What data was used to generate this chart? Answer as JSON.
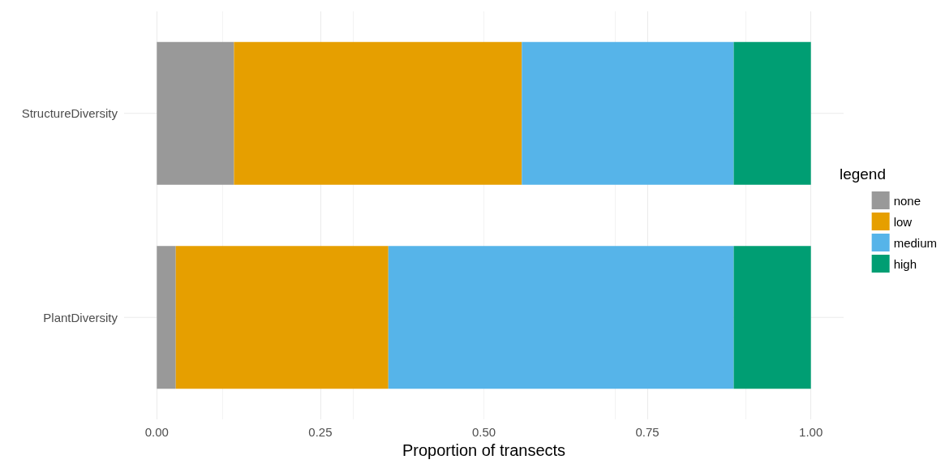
{
  "chart_data": {
    "type": "bar",
    "orientation": "horizontal",
    "stacked": true,
    "categories": [
      "StructureDiversity",
      "PlantDiversity"
    ],
    "series": [
      {
        "name": "none",
        "color": "#999999",
        "values": [
          0.118,
          0.029
        ]
      },
      {
        "name": "low",
        "color": "#e69f00",
        "values": [
          0.44,
          0.325
        ]
      },
      {
        "name": "medium",
        "color": "#56b4e9",
        "values": [
          0.324,
          0.528
        ]
      },
      {
        "name": "high",
        "color": "#009e73",
        "values": [
          0.118,
          0.118
        ]
      }
    ],
    "xlabel": "Proportion of transects",
    "legend_title": "legend",
    "legend": "right",
    "xlim": [
      -0.05,
      1.05
    ],
    "xticks": [
      {
        "value": 0,
        "label": "0.00"
      },
      {
        "value": 0.25,
        "label": "0.25"
      },
      {
        "value": 0.5,
        "label": "0.50"
      },
      {
        "value": 0.75,
        "label": "0.75"
      },
      {
        "value": 1,
        "label": "1.00"
      }
    ],
    "grid": true
  }
}
